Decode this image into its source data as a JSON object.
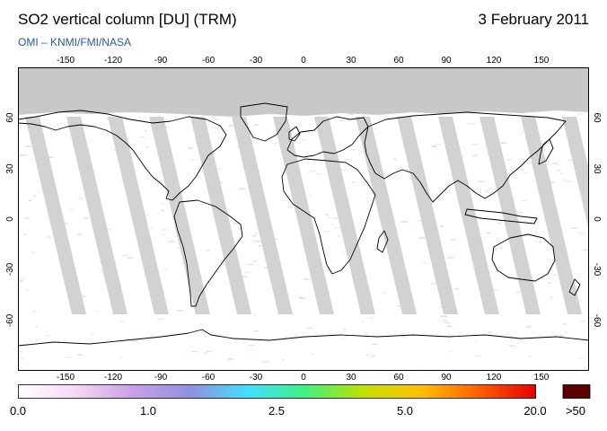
{
  "header": {
    "title": "SO2 vertical column [DU] (TRM)",
    "date": "3 February 2011",
    "credit": "OMI  –  KNMI/FMI/NASA"
  },
  "map": {
    "lon_ticks": [
      "-150",
      "-120",
      "-90",
      "-60",
      "-30",
      "0",
      "30",
      "60",
      "90",
      "120",
      "150"
    ],
    "lat_ticks": [
      "60",
      "30",
      "0",
      "-30",
      "-60"
    ],
    "colors": {
      "no_data": "#c8c8c8",
      "swath_gap": "#d2d2d2",
      "land_overlay": "#9a9a9a",
      "coastline": "#000000",
      "low_so2": "#e8c8f0"
    }
  },
  "colorbar": {
    "labels": [
      "0.0",
      "1.0",
      "2.5",
      "5.0",
      "20.0",
      ">50"
    ],
    "colors": [
      "#ffffff",
      "#f4d8f4",
      "#c8a0e8",
      "#9090e0",
      "#40e0ff",
      "#40f080",
      "#c0e000",
      "#ffc000",
      "#ff6000",
      "#e80000"
    ],
    "overflow_color": "#5a0000"
  }
}
